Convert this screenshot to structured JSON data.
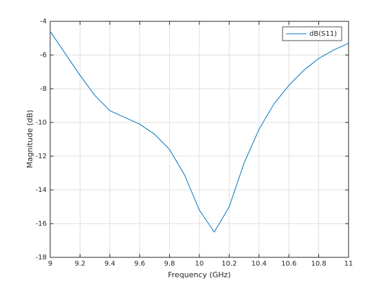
{
  "chart_data": {
    "type": "line",
    "xlabel": "Frequency (GHz)",
    "ylabel": "Magnitude (dB)",
    "x": [
      9,
      9.1,
      9.2,
      9.3,
      9.4,
      9.5,
      9.6,
      9.7,
      9.8,
      9.9,
      10,
      10.1,
      10.2,
      10.3,
      10.4,
      10.5,
      10.6,
      10.7,
      10.8,
      10.9,
      11
    ],
    "series": [
      {
        "name": "dB(S11)",
        "color": "#0072bd",
        "values": [
          -4.6,
          -5.9,
          -7.2,
          -8.4,
          -9.3,
          -9.7,
          -10.1,
          -10.7,
          -11.6,
          -13.1,
          -15.2,
          -16.5,
          -15.0,
          -12.4,
          -10.4,
          -8.9,
          -7.8,
          -6.9,
          -6.2,
          -5.7,
          -5.3
        ]
      }
    ],
    "xlim": [
      9,
      11
    ],
    "xticks": [
      9,
      9.2,
      9.4,
      9.6,
      9.8,
      10,
      10.2,
      10.4,
      10.6,
      10.8,
      11
    ],
    "ylim": [
      -18,
      -4
    ],
    "yticks": [
      -18,
      -16,
      -14,
      -12,
      -10,
      -8,
      -6,
      -4
    ],
    "grid": true,
    "legend": "northeast"
  }
}
